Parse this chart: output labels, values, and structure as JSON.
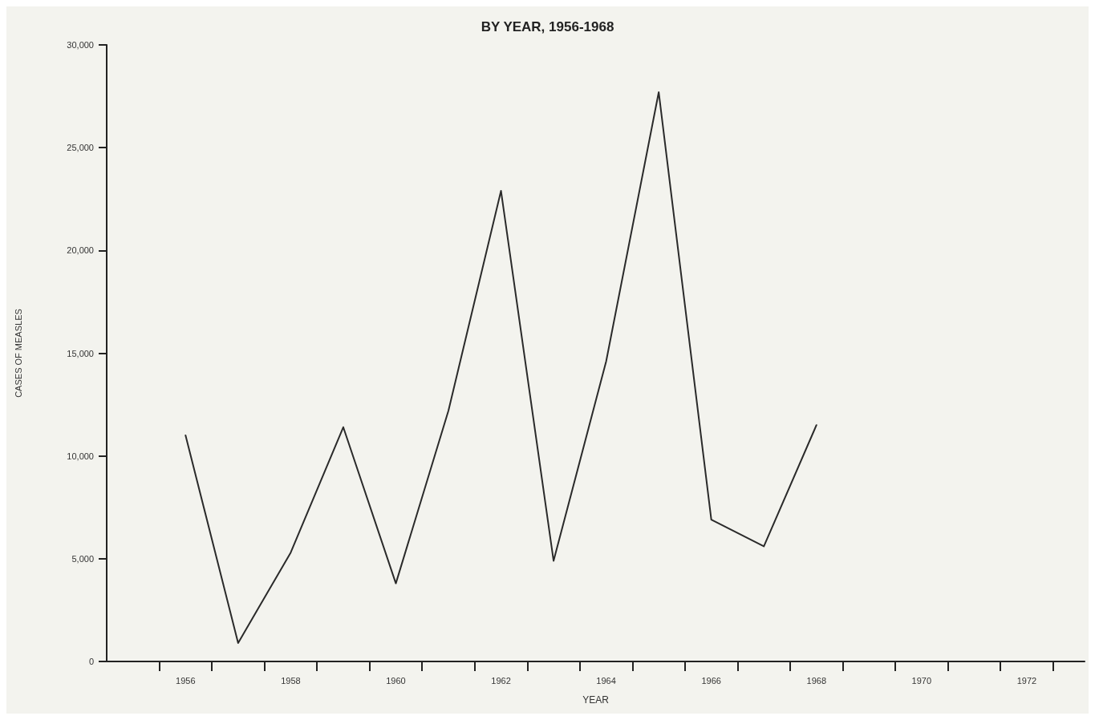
{
  "chart_data": {
    "type": "line",
    "title": "BY YEAR, 1956-1968",
    "xlabel": "YEAR",
    "ylabel": "CASES OF MEASLES",
    "x": [
      1956,
      1957,
      1958,
      1959,
      1960,
      1961,
      1962,
      1963,
      1964,
      1965,
      1966,
      1967,
      1968
    ],
    "series": [
      {
        "color": "#2a2a2a",
        "values": [
          11000,
          900,
          5300,
          11400,
          3800,
          12200,
          22900,
          4900,
          14600,
          27700,
          6900,
          5600,
          11500
        ]
      }
    ],
    "xlim": [
      1954.5,
      1973.1
    ],
    "xticks": [
      {
        "value": 1955.5,
        "label": null
      },
      1956,
      {
        "value": 1956.5,
        "label": null
      },
      {
        "value": 1957.5,
        "label": null
      },
      1958,
      {
        "value": 1958.5,
        "label": null
      },
      {
        "value": 1959.5,
        "label": null
      },
      1960,
      {
        "value": 1960.5,
        "label": null
      },
      {
        "value": 1961.5,
        "label": null
      },
      1962,
      {
        "value": 1962.5,
        "label": null
      },
      {
        "value": 1963.5,
        "label": null
      },
      1964,
      {
        "value": 1964.5,
        "label": null
      },
      {
        "value": 1965.5,
        "label": null
      },
      1966,
      {
        "value": 1966.5,
        "label": null
      },
      {
        "value": 1967.5,
        "label": null
      },
      1968,
      {
        "value": 1968.5,
        "label": null
      },
      {
        "value": 1969.5,
        "label": null
      },
      1970,
      {
        "value": 1970.5,
        "label": null
      },
      {
        "value": 1971.5,
        "label": null
      },
      1972,
      {
        "value": 1972.5,
        "label": null
      }
    ],
    "ylim": [
      0,
      30000
    ],
    "yticks": [
      {
        "value": 0,
        "label": "0"
      },
      {
        "value": 5000,
        "label": "5,000"
      },
      {
        "value": 10000,
        "label": "10,000"
      },
      {
        "value": 15000,
        "label": "15,000"
      },
      {
        "value": 20000,
        "label": "20,000"
      },
      {
        "value": 25000,
        "label": "25,000"
      },
      {
        "value": 30000,
        "label": "30,000"
      }
    ],
    "grid": false,
    "marker": "none",
    "line_style": "solid"
  }
}
